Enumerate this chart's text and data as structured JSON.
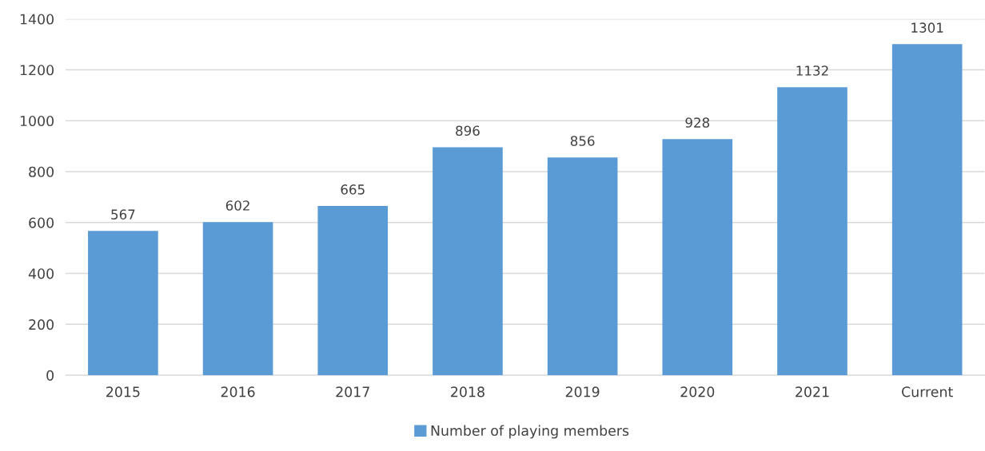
{
  "chart_data": {
    "type": "bar",
    "categories": [
      "2015",
      "2016",
      "2017",
      "2018",
      "2019",
      "2020",
      "2021",
      "Current"
    ],
    "series": [
      {
        "name": "Number of playing members",
        "color": "#5b9bd5",
        "values": [
          567,
          602,
          665,
          896,
          856,
          928,
          1132,
          1301
        ]
      }
    ],
    "ylim": [
      0,
      1400
    ],
    "yticks": [
      0,
      200,
      400,
      600,
      800,
      1000,
      1200,
      1400
    ],
    "grid": "y",
    "legend": "bottom",
    "data_labels": true
  }
}
